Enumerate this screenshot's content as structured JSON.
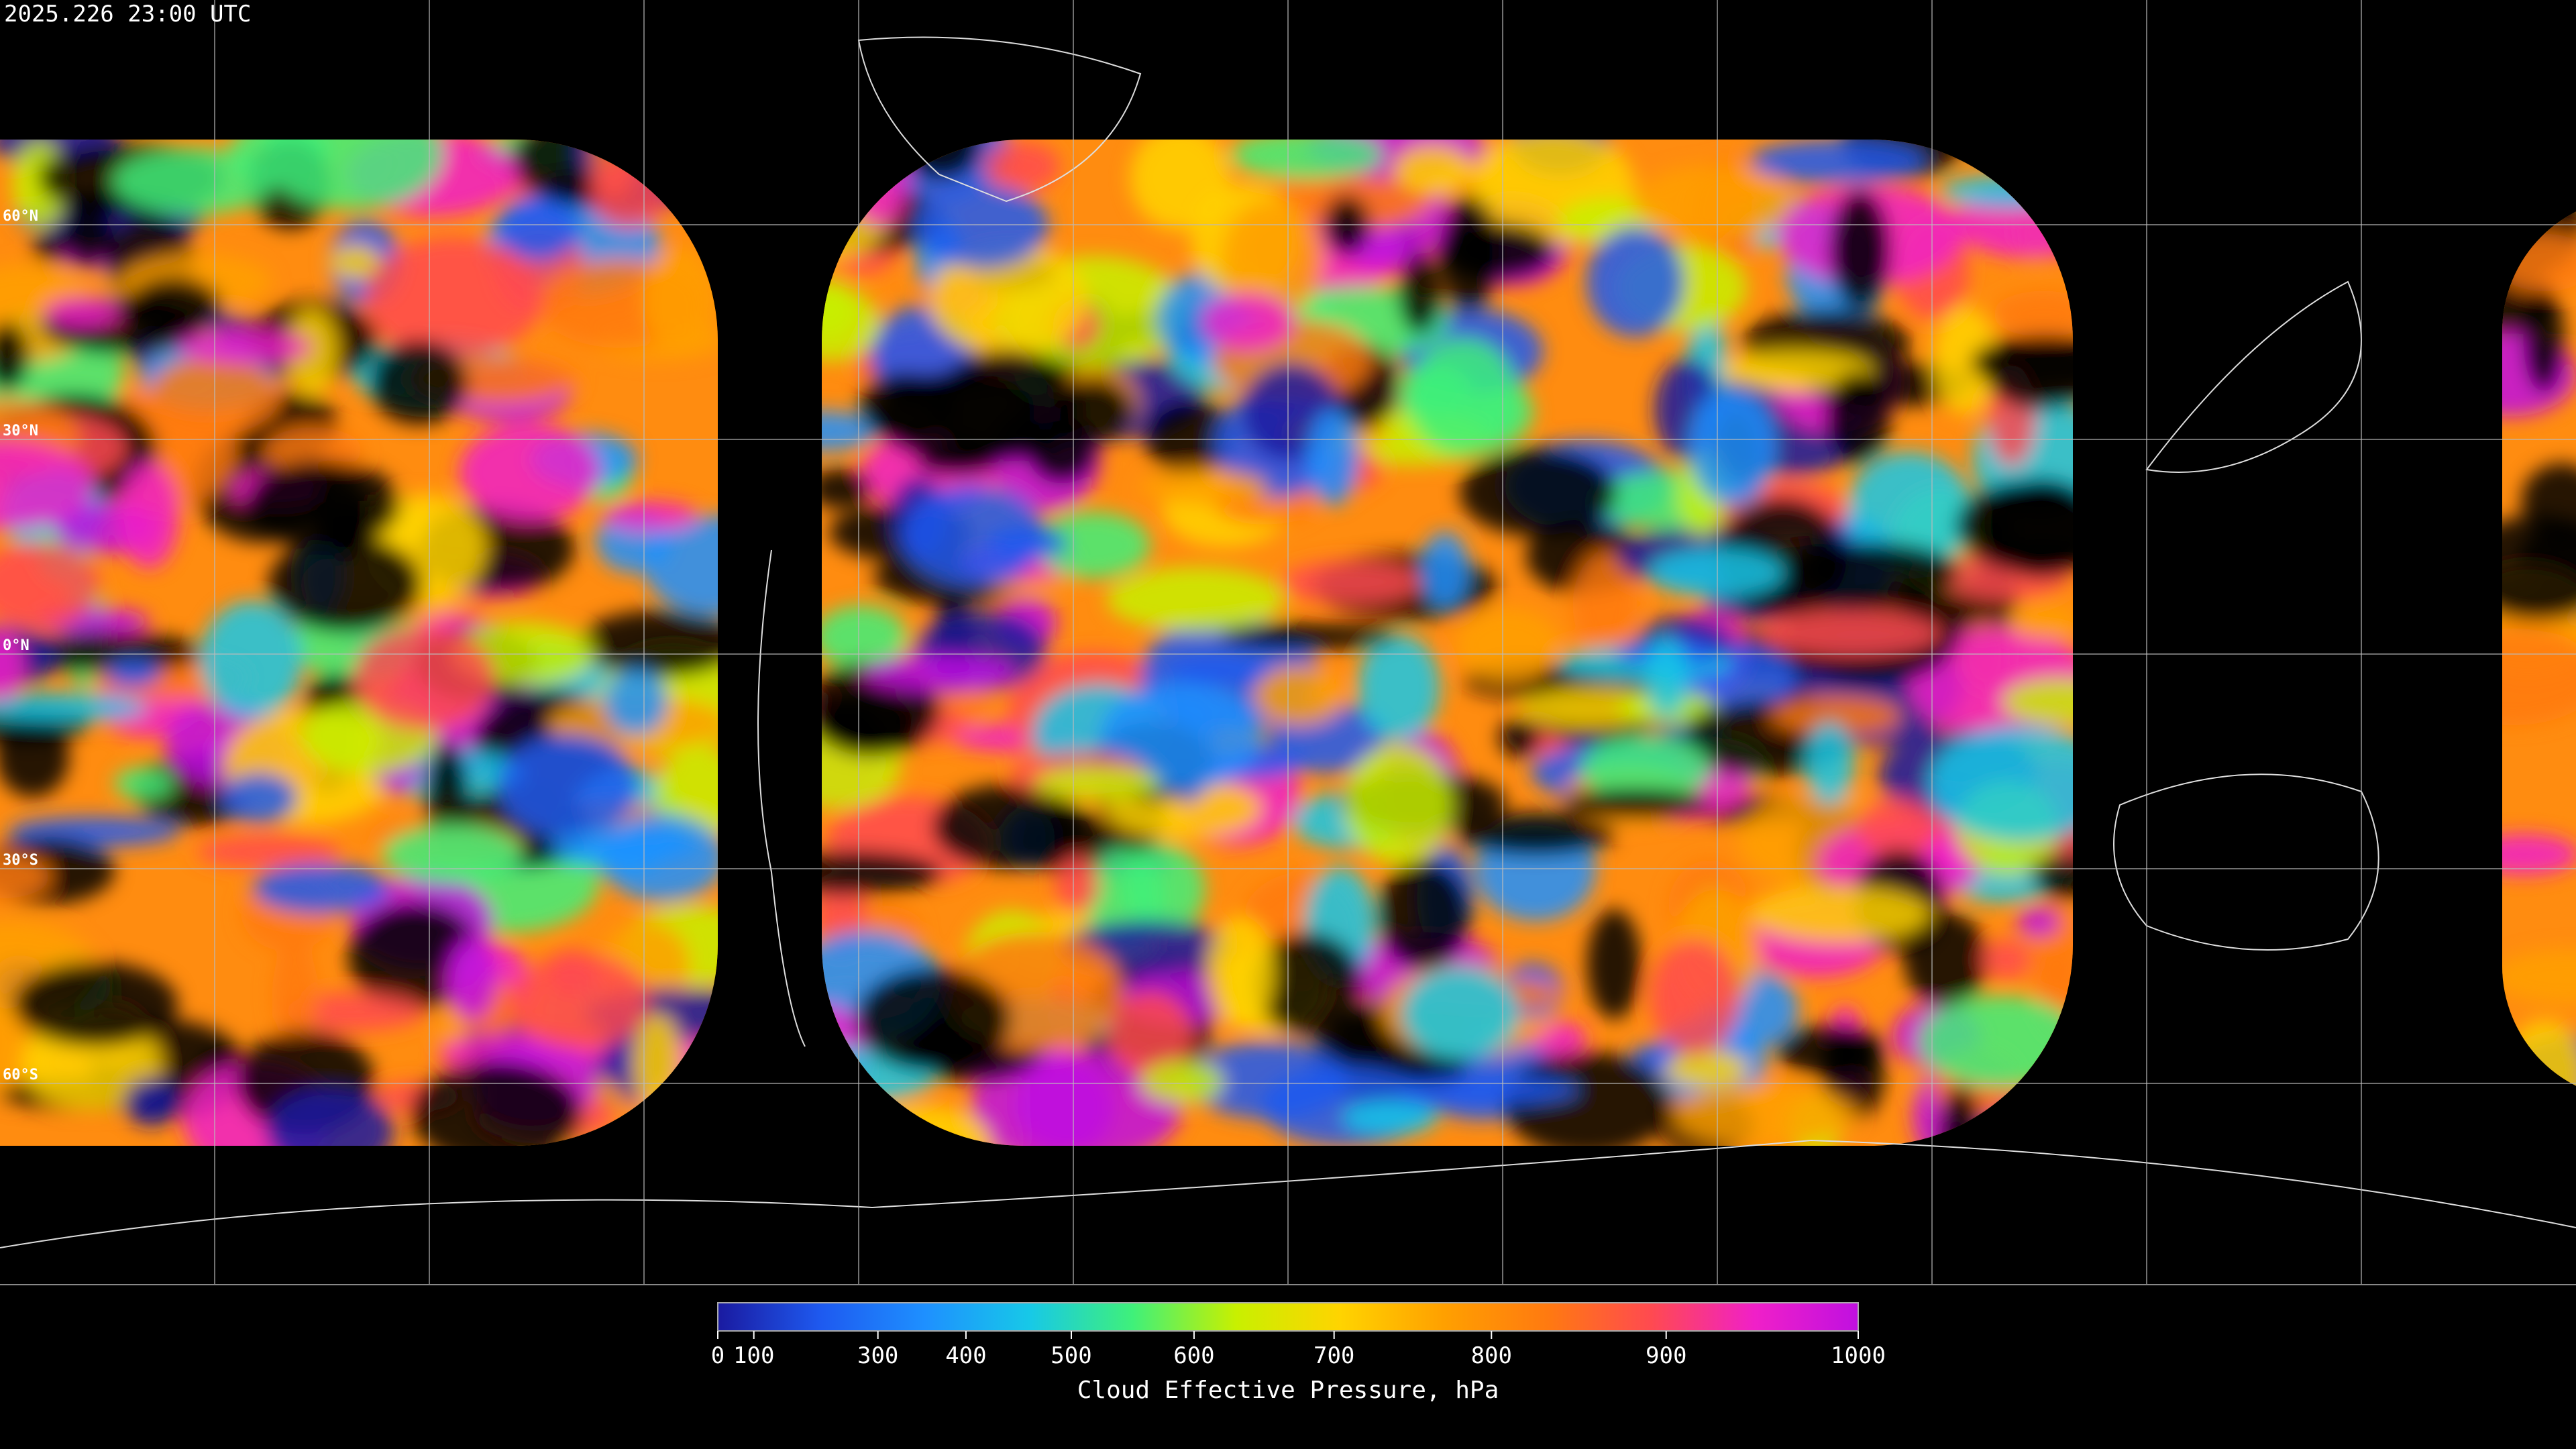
{
  "header": {
    "timestamp": "2025.226 23:00 UTC"
  },
  "map": {
    "latitude_labels": [
      "60°N",
      "30°N",
      "0°N",
      "30°S",
      "60°S"
    ]
  },
  "chart_data": {
    "type": "colorbar",
    "title": "Cloud Effective Pressure, hPa",
    "xlim": [
      0,
      1000
    ],
    "xticks": [
      0,
      100,
      300,
      400,
      500,
      600,
      700,
      800,
      900,
      1000
    ],
    "colormap": [
      "#1a1aa0",
      "#1e5af0",
      "#1e90ff",
      "#17c8e8",
      "#3ff07a",
      "#c8f000",
      "#ffd400",
      "#ffa000",
      "#ff7a10",
      "#ff4a50",
      "#f020c8",
      "#c010e0"
    ]
  }
}
